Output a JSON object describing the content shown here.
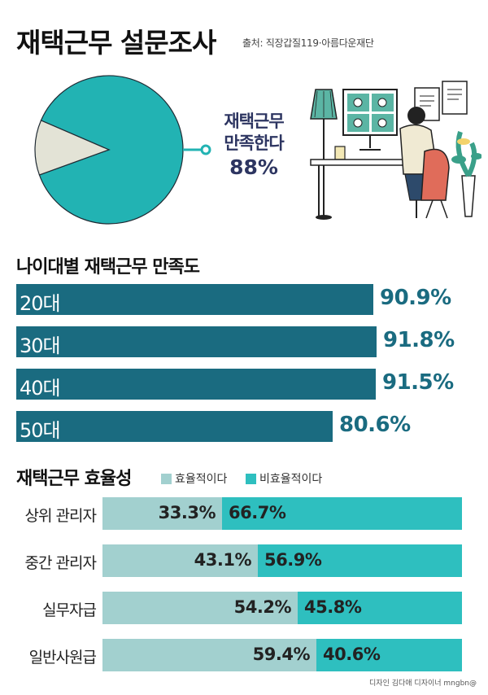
{
  "header": {
    "title": "재택근무 설문조사",
    "source": "출처: 직장갑질119·아름다운재단"
  },
  "satisfaction": {
    "label_line1": "재택근무",
    "label_line2": "만족한다",
    "value_label": "88%"
  },
  "age_section": {
    "title": "나이대별 재택근무 만족도"
  },
  "efficiency_section": {
    "title": "재택근무 효율성",
    "legend": [
      {
        "label": "효율적이다",
        "color": "#a2d0cf"
      },
      {
        "label": "비효율적이다",
        "color": "#2ebfbf"
      }
    ]
  },
  "colors": {
    "teal": "#22b3b3",
    "dark_teal": "#1a6b80",
    "navy": "#2d3561",
    "light_teal": "#a2d0cf",
    "aqua": "#2ebfbf",
    "pie_rest": "#e3e3d6"
  },
  "credit": "디자인 김다애 디자이너 mngbn@",
  "illustration": {
    "icon": "remote-work-desk-illustration"
  },
  "chart_data": [
    {
      "type": "pie",
      "title": "",
      "slices": [
        {
          "label": "재택근무 만족한다",
          "value": 88
        },
        {
          "label": "",
          "value": 12
        }
      ]
    },
    {
      "type": "bar",
      "title": "나이대별 재택근무 만족도",
      "orientation": "horizontal",
      "categories": [
        "20대",
        "30대",
        "40대",
        "50대"
      ],
      "values": [
        90.9,
        91.8,
        91.5,
        80.6
      ],
      "value_labels": [
        "90.9%",
        "91.8%",
        "91.5%",
        "80.6%"
      ],
      "xlim": [
        0,
        100
      ]
    },
    {
      "type": "bar",
      "title": "재택근무 효율성",
      "orientation": "horizontal",
      "stacked": true,
      "categories": [
        "상위 관리자",
        "중간 관리자",
        "실무자급",
        "일반사원급"
      ],
      "series": [
        {
          "name": "효율적이다",
          "values": [
            33.3,
            43.1,
            54.2,
            59.4
          ],
          "labels": [
            "33.3%",
            "43.1%",
            "54.2%",
            "59.4%"
          ]
        },
        {
          "name": "비효율적이다",
          "values": [
            66.7,
            56.9,
            45.8,
            40.6
          ],
          "labels": [
            "66.7%",
            "56.9%",
            "45.8%",
            "40.6%"
          ]
        }
      ],
      "legend": "top"
    }
  ]
}
